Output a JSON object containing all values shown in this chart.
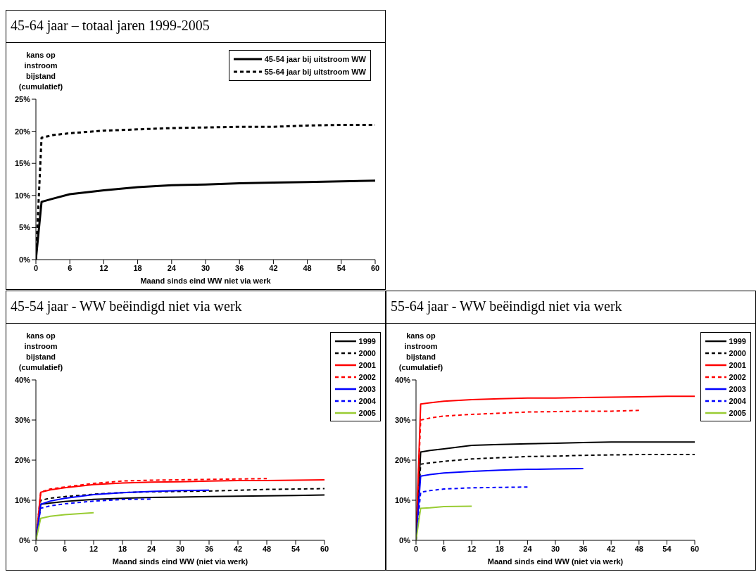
{
  "chart_data": [
    {
      "type": "line",
      "title": "45-64 jaar – totaal jaren 1999-2005",
      "ylabel": "kans op instroom bijstand (cumulatief)",
      "xlabel": "Maand sinds eind WW niet via werk",
      "x": [
        0,
        1,
        3,
        6,
        12,
        18,
        24,
        30,
        36,
        42,
        48,
        54,
        60
      ],
      "xlim": [
        0,
        60
      ],
      "xticks": [
        0,
        6,
        12,
        18,
        24,
        30,
        36,
        42,
        48,
        54,
        60
      ],
      "ylim": [
        0,
        25
      ],
      "yticks": [
        {
          "value": 0,
          "label": "0%"
        },
        {
          "value": 5,
          "label": "5%"
        },
        {
          "value": 10,
          "label": "10%"
        },
        {
          "value": 15,
          "label": "15%"
        },
        {
          "value": 20,
          "label": "20%"
        },
        {
          "value": 25,
          "label": "25%"
        }
      ],
      "grid": false,
      "legend": "top right",
      "marker": "none",
      "series": [
        {
          "name": "45-54 jaar bij uitstroom WW",
          "color": "#000000",
          "line_style": "solid",
          "values": [
            0,
            9,
            9.5,
            10.2,
            10.8,
            11.3,
            11.6,
            11.7,
            11.9,
            12,
            12.1,
            12.2,
            12.3
          ]
        },
        {
          "name": "55-64 jaar bij uitstroom WW",
          "color": "#000000",
          "line_style": "dashed",
          "values": [
            0,
            19,
            19.4,
            19.7,
            20.1,
            20.3,
            20.5,
            20.6,
            20.7,
            20.7,
            20.9,
            21,
            21
          ]
        }
      ]
    },
    {
      "type": "line",
      "title": "45-54 jaar - WW beëindigd niet via werk",
      "ylabel": "kans op instroom bijstand (cumulatief)",
      "xlabel": "Maand sinds eind WW (niet via werk)",
      "xlim": [
        0,
        60
      ],
      "xticks": [
        0,
        6,
        12,
        18,
        24,
        30,
        36,
        42,
        48,
        54,
        60
      ],
      "ylim": [
        0,
        40
      ],
      "yticks": [
        {
          "value": 0,
          "label": "0%"
        },
        {
          "value": 10,
          "label": "10%"
        },
        {
          "value": 20,
          "label": "20%"
        },
        {
          "value": 30,
          "label": "30%"
        },
        {
          "value": 40,
          "label": "40%"
        }
      ],
      "grid": false,
      "legend": "right",
      "marker": "none",
      "series": [
        {
          "name": "1999",
          "color": "#000000",
          "line_style": "solid",
          "x": [
            0,
            1,
            3,
            6,
            12,
            18,
            24,
            30,
            36,
            42,
            48,
            54,
            60
          ],
          "values": [
            0,
            9,
            9.3,
            9.7,
            10.2,
            10.5,
            10.7,
            10.8,
            10.9,
            11,
            11.1,
            11.2,
            11.3
          ]
        },
        {
          "name": "2000",
          "color": "#000000",
          "line_style": "dashed",
          "x": [
            0,
            1,
            3,
            6,
            12,
            18,
            24,
            30,
            36,
            42,
            48,
            54,
            60
          ],
          "values": [
            0,
            10,
            10.5,
            10.9,
            11.5,
            11.9,
            12.1,
            12.2,
            12.3,
            12.5,
            12.7,
            12.8,
            12.9
          ]
        },
        {
          "name": "2001",
          "color": "#ff0000",
          "line_style": "solid",
          "x": [
            0,
            1,
            3,
            6,
            12,
            18,
            24,
            30,
            36,
            42,
            48,
            54,
            60
          ],
          "values": [
            0,
            12,
            12.6,
            13.1,
            13.9,
            14.3,
            14.5,
            14.6,
            14.8,
            14.9,
            14.9,
            15,
            15.1
          ]
        },
        {
          "name": "2002",
          "color": "#ff0000",
          "line_style": "dashed",
          "x": [
            0,
            1,
            3,
            6,
            12,
            18,
            24,
            30,
            36,
            42,
            48
          ],
          "values": [
            0,
            12,
            12.8,
            13.3,
            14.2,
            14.8,
            15,
            15.1,
            15.2,
            15.3,
            15.4
          ]
        },
        {
          "name": "2003",
          "color": "#0000ff",
          "line_style": "solid",
          "x": [
            0,
            1,
            3,
            6,
            12,
            18,
            24,
            30,
            36
          ],
          "values": [
            0,
            9,
            9.8,
            10.5,
            11.4,
            11.9,
            12.2,
            12.4,
            12.5
          ]
        },
        {
          "name": "2004",
          "color": "#0000ff",
          "line_style": "dashed",
          "x": [
            0,
            1,
            3,
            6,
            12,
            18,
            24
          ],
          "values": [
            0,
            8,
            8.6,
            9.1,
            9.8,
            10.2,
            10.3
          ]
        },
        {
          "name": "2005",
          "color": "#99cc33",
          "line_style": "solid",
          "x": [
            0,
            1,
            3,
            6,
            12
          ],
          "values": [
            0,
            5.5,
            6,
            6.4,
            6.9
          ]
        }
      ]
    },
    {
      "type": "line",
      "title": "55-64 jaar - WW beëindigd niet via werk",
      "ylabel": "kans op instroom bijstand (cumulatief)",
      "xlabel": "Maand sinds eind WW (niet via werk)",
      "xlim": [
        0,
        60
      ],
      "xticks": [
        0,
        6,
        12,
        18,
        24,
        30,
        36,
        42,
        48,
        54,
        60
      ],
      "ylim": [
        0,
        40
      ],
      "yticks": [
        {
          "value": 0,
          "label": "0%"
        },
        {
          "value": 10,
          "label": "10%"
        },
        {
          "value": 20,
          "label": "20%"
        },
        {
          "value": 30,
          "label": "30%"
        },
        {
          "value": 40,
          "label": "40%"
        }
      ],
      "grid": false,
      "legend": "right",
      "marker": "none",
      "series": [
        {
          "name": "1999",
          "color": "#000000",
          "line_style": "solid",
          "x": [
            0,
            1,
            3,
            6,
            12,
            18,
            24,
            30,
            36,
            42,
            48,
            54,
            60
          ],
          "values": [
            0,
            22,
            22.4,
            22.8,
            23.7,
            23.9,
            24.1,
            24.2,
            24.4,
            24.5,
            24.5,
            24.5,
            24.5
          ]
        },
        {
          "name": "2000",
          "color": "#000000",
          "line_style": "dashed",
          "x": [
            0,
            1,
            3,
            6,
            12,
            18,
            24,
            30,
            36,
            42,
            48,
            54,
            60
          ],
          "values": [
            0,
            19,
            19.3,
            19.7,
            20.3,
            20.6,
            20.9,
            21,
            21.2,
            21.3,
            21.4,
            21.4,
            21.4
          ]
        },
        {
          "name": "2001",
          "color": "#ff0000",
          "line_style": "solid",
          "x": [
            0,
            1,
            3,
            6,
            12,
            18,
            24,
            30,
            36,
            42,
            48,
            54,
            60
          ],
          "values": [
            0,
            34,
            34.3,
            34.7,
            35.1,
            35.3,
            35.5,
            35.5,
            35.6,
            35.7,
            35.8,
            35.9,
            35.9
          ]
        },
        {
          "name": "2002",
          "color": "#ff0000",
          "line_style": "dashed",
          "x": [
            0,
            1,
            3,
            6,
            12,
            18,
            24,
            30,
            36,
            42,
            48
          ],
          "values": [
            0,
            30,
            30.5,
            31,
            31.4,
            31.7,
            32,
            32.1,
            32.2,
            32.2,
            32.4
          ]
        },
        {
          "name": "2003",
          "color": "#0000ff",
          "line_style": "solid",
          "x": [
            0,
            1,
            3,
            6,
            12,
            18,
            24,
            30,
            36
          ],
          "values": [
            0,
            16,
            16.4,
            16.8,
            17.2,
            17.5,
            17.7,
            17.8,
            17.9
          ]
        },
        {
          "name": "2004",
          "color": "#0000ff",
          "line_style": "dashed",
          "x": [
            0,
            1,
            3,
            6,
            12,
            18,
            24
          ],
          "values": [
            0,
            12,
            12.4,
            12.8,
            13.1,
            13.2,
            13.3
          ]
        },
        {
          "name": "2005",
          "color": "#99cc33",
          "line_style": "solid",
          "x": [
            0,
            1,
            3,
            6,
            12
          ],
          "values": [
            0,
            8,
            8.1,
            8.4,
            8.5
          ]
        }
      ]
    }
  ]
}
